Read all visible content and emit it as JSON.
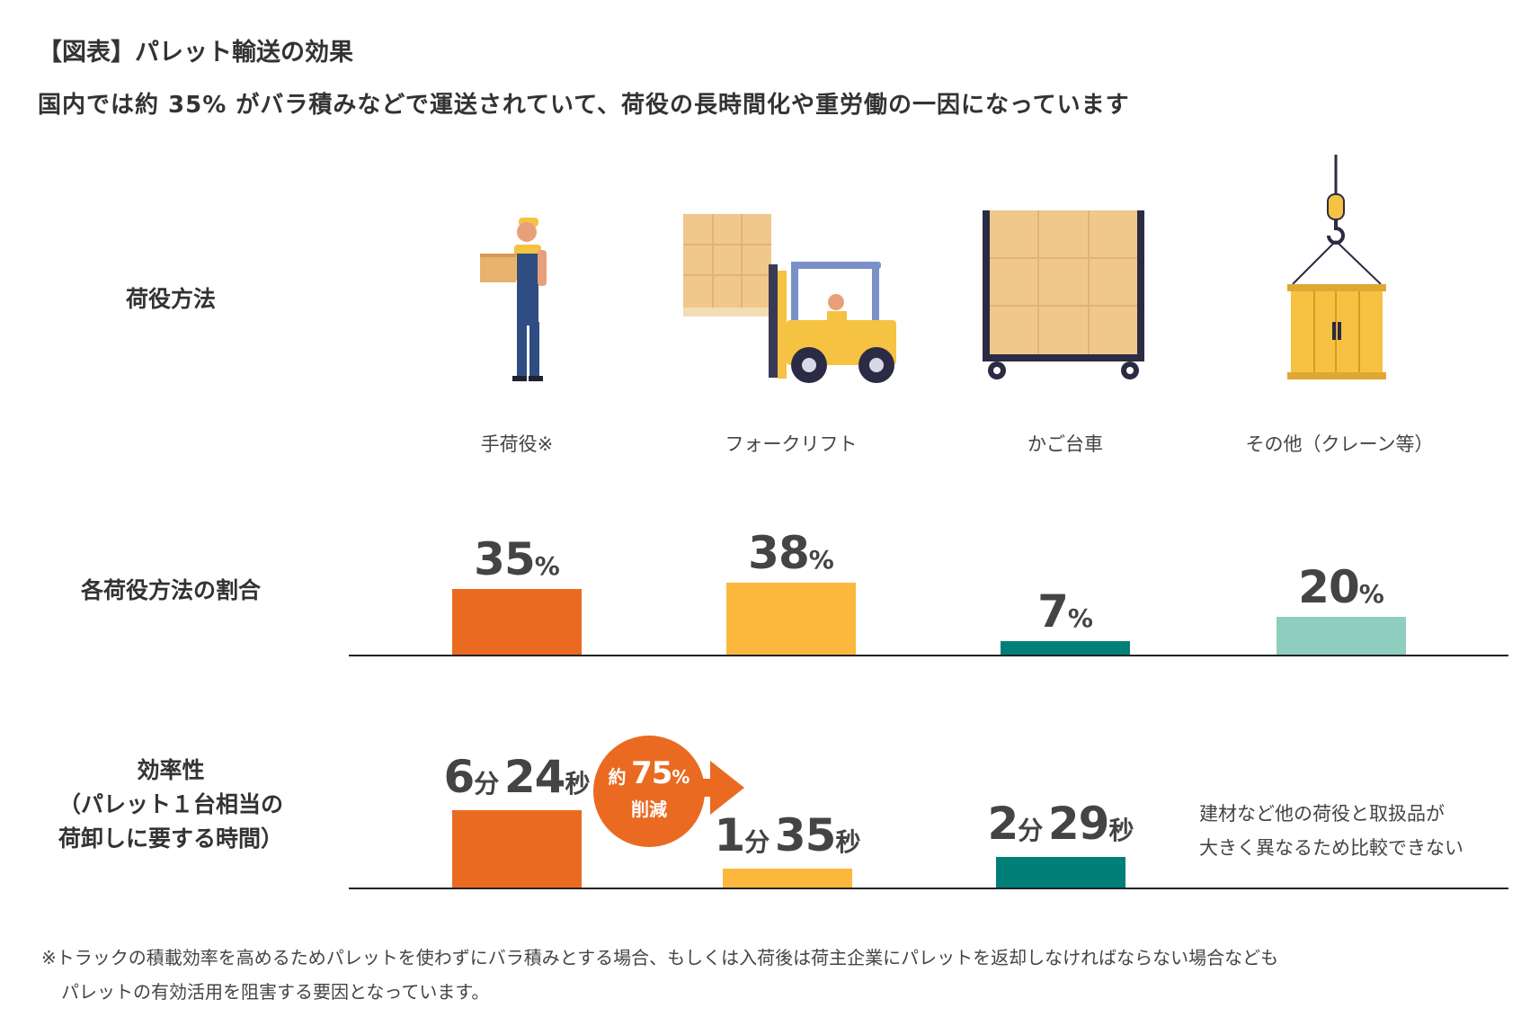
{
  "header": {
    "title": "【図表】パレット輸送の効果",
    "subtitle": "国内では約 35% がバラ積みなどで運送されていて、荷役の長時間化や重労働の一因になっています"
  },
  "rows": {
    "methods_label": "荷役方法",
    "share_label": "各荷役方法の割合",
    "efficiency_label_1": "効率性",
    "efficiency_label_2": "（パレット１台相当の",
    "efficiency_label_3": "荷卸しに要する時間）"
  },
  "methods": [
    {
      "label": "手荷役※",
      "icon": "worker-carrying-box-icon"
    },
    {
      "label": "フォークリフト",
      "icon": "forklift-icon"
    },
    {
      "label": "かご台車",
      "icon": "cage-cart-icon"
    },
    {
      "label": "その他（クレーン等）",
      "icon": "crane-container-icon"
    }
  ],
  "chart_data": [
    {
      "type": "bar",
      "title": "各荷役方法の割合",
      "categories": [
        "手荷役※",
        "フォークリフト",
        "かご台車",
        "その他（クレーン等）"
      ],
      "values": [
        35,
        38,
        7,
        20
      ],
      "unit": "%",
      "colors": [
        "#ea6a22",
        "#fbb83d",
        "#007f78",
        "#8fcebf"
      ],
      "labels": [
        {
          "num": "35",
          "unit": "%"
        },
        {
          "num": "38",
          "unit": "%"
        },
        {
          "num": "7",
          "unit": "%"
        },
        {
          "num": "20",
          "unit": "%"
        }
      ]
    },
    {
      "type": "bar",
      "title": "効率性（パレット１台相当の荷卸しに要する時間）",
      "categories": [
        "手荷役※",
        "フォークリフト",
        "かご台車"
      ],
      "values_seconds": [
        384,
        95,
        149
      ],
      "colors": [
        "#ea6a22",
        "#fbb83d",
        "#007f78"
      ],
      "labels": [
        {
          "min": "6",
          "min_unit": "分",
          "sec": "24",
          "sec_unit": "秒"
        },
        {
          "min": "1",
          "min_unit": "分",
          "sec": "35",
          "sec_unit": "秒"
        },
        {
          "min": "2",
          "min_unit": "分",
          "sec": "29",
          "sec_unit": "秒"
        }
      ],
      "reduction_badge": {
        "prefix": "約",
        "value": "75",
        "unit": "%",
        "label": "削減"
      },
      "other_note_1": "建材など他の荷役と取扱品が",
      "other_note_2": "大きく異なるため比較できない"
    }
  ],
  "footnote": {
    "line1": "※トラックの積載効率を高めるためパレットを使わずにバラ積みとする場合、もしくは入荷後は荷主企業にパレットを返却しなければならない場合なども",
    "line2": "パレットの有効活用を阻害する要因となっています。"
  },
  "colors": {
    "orange": "#ea6a22",
    "yellow": "#fbb83d",
    "teal": "#007f78",
    "mint": "#8fcebf"
  }
}
